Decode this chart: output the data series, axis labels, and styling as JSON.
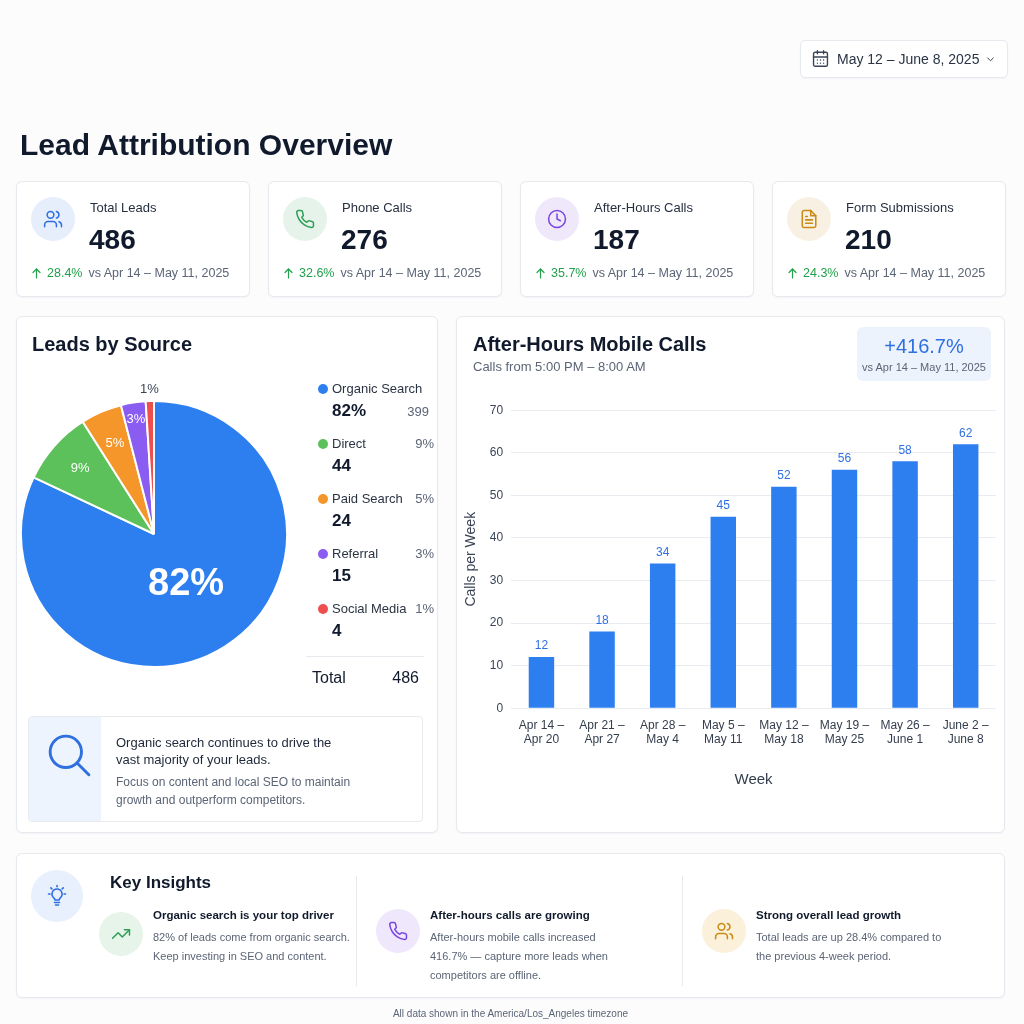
{
  "chart_data": [
    {
      "type": "other",
      "title": "Lead Attribution Overview",
      "subtitle": "May 12 – June 8, 2025",
      "annotations": [
        "Total Leads",
        "486",
        "28.4%",
        "vs Apr 14 – May 11, 2025",
        "Phone Calls",
        "276",
        "32.6%",
        "vs Apr 14 – May 11, 2025",
        "After-Hours Calls",
        "187",
        "35.7%",
        "vs Apr 14 – May 11, 2025",
        "Form Submissions",
        "210",
        "24.3%",
        "vs Apr 14 – May 11, 2025"
      ]
    },
    {
      "type": "pie",
      "title": "Leads by Source",
      "categories": [
        "Organic Search",
        "Direct",
        "Paid Search",
        "Referral",
        "Social Media"
      ],
      "values": [
        82,
        9,
        5,
        3,
        1
      ],
      "colors": [
        "#2d7ff0",
        "#5cc15a",
        "#f5962b",
        "#8a5cf2",
        "#ee4e4e"
      ],
      "value_labels": [
        "82%",
        "9%",
        "5%",
        "3%",
        "1%"
      ],
      "legend": "right",
      "annotations": [
        "399",
        "44",
        "24",
        "15",
        "4",
        "Total",
        "486",
        "Organic search continues to drive the vast majority of your leads.",
        "Focus on content and local SEO to maintain growth and outperform competitors."
      ]
    },
    {
      "type": "bar",
      "title": "After-Hours Mobile Calls",
      "subtitle": "Calls from 5:00 PM – 8:00 AM",
      "categories": [
        "Apr 14 – Apr 20",
        "Apr 21 – Apr 27",
        "Apr 28 – May 4",
        "May 5 – May 11",
        "May 12 – May 18",
        "May 19 – May 25",
        "May 26 – June 1",
        "June 2 – June 8"
      ],
      "values": [
        12,
        18,
        34,
        45,
        52,
        56,
        58,
        62
      ],
      "color": "#2d7ff0",
      "xlabel": "Week",
      "ylabel": "Calls per Week",
      "ylim": [
        0,
        70
      ],
      "yticks": [
        0,
        10,
        20,
        30,
        40,
        50,
        60,
        70
      ],
      "grid": "y",
      "data_labels": true,
      "annotations": [
        "+416.7%",
        "vs Apr 14 – May 11, 2025"
      ]
    },
    {
      "type": "other",
      "title": "Key Insights",
      "annotations": [
        "Organic search is your top driver",
        "82% of leads come from organic search. Keep investing in SEO and content.",
        "After-hours calls are growing",
        "After-hours mobile calls increased 416.7% — capture more leads when competitors are offline.",
        "Strong overall lead growth",
        "Total leads are up 28.4% compared to the previous 4-week period.",
        "All data shown in the America/Los_Angeles timezone"
      ]
    }
  ]
}
